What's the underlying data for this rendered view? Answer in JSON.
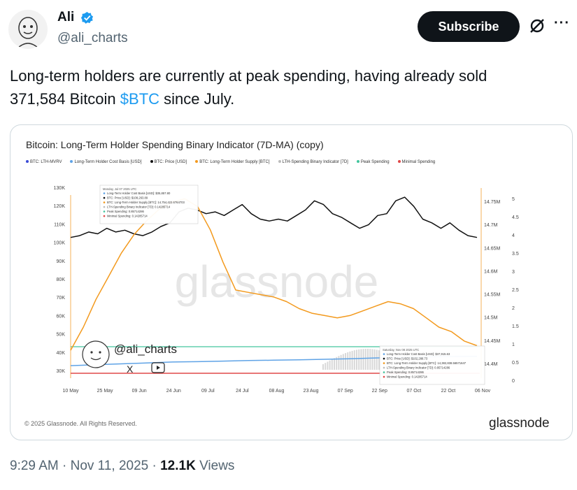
{
  "author": {
    "name": "Ali",
    "handle": "@ali_charts"
  },
  "subscribe_label": "Subscribe",
  "more_label": "···",
  "tweet": {
    "line1": "Long-term holders are currently at peak spending, having already sold",
    "line2_before": "371,584 Bitcoin ",
    "cashtag": "$BTC",
    "line2_after": " since July."
  },
  "chart_data": {
    "type": "line",
    "title": "Bitcoin: Long-Term Holder Spending Binary Indicator (7D-MA)  (copy)",
    "legend": [
      {
        "name": "BTC: LTH-MVRV",
        "color": "#3b4bd6"
      },
      {
        "name": "Long-Term Holder Cost Basis [USD]",
        "color": "#5fa3e6"
      },
      {
        "name": "BTC: Price [USD]",
        "color": "#111111"
      },
      {
        "name": "BTC: Long-Term Holder Supply [BTC]",
        "color": "#f39a1e"
      },
      {
        "name": "LTH-Spending Binary Indicator [7D]",
        "color": "#bbbbbb"
      },
      {
        "name": "Peak Spending",
        "color": "#43c59e"
      },
      {
        "name": "Minimal Spending",
        "color": "#e04848"
      }
    ],
    "x_ticks": [
      "10 May",
      "25 May",
      "09 Jun",
      "24 Jun",
      "09 Jul",
      "24 Jul",
      "08 Aug",
      "23 Aug",
      "07 Sep",
      "22 Sep",
      "07 Oct",
      "22 Oct",
      "06 Nov"
    ],
    "y_left_ticks": [
      "130K",
      "120K",
      "110K",
      "100K",
      "90K",
      "80K",
      "70K",
      "60K",
      "50K",
      "40K",
      "30K"
    ],
    "y_right1_ticks": [
      "14.75M",
      "14.7M",
      "14.65M",
      "14.6M",
      "14.55M",
      "14.5M",
      "14.45M",
      "14.4M"
    ],
    "y_right2_ticks": [
      "5",
      "4.5",
      "4",
      "3.5",
      "3",
      "2.5",
      "2",
      "1.5",
      "1",
      "0.5",
      "0"
    ],
    "series": [
      {
        "name": "BTC: Price [USD]",
        "color": "#111111",
        "values": [
          103000,
          104000,
          106000,
          105000,
          108000,
          106000,
          107000,
          105000,
          104000,
          106000,
          109000,
          111000,
          117000,
          119000,
          118000,
          116000,
          117000,
          115000,
          118000,
          121000,
          116000,
          113000,
          112000,
          113000,
          112000,
          115000,
          118000,
          123000,
          121000,
          116000,
          114000,
          111000,
          108000,
          110000,
          115000,
          116000,
          123000,
          125000,
          120000,
          113000,
          111000,
          108000,
          111000,
          107000,
          104000,
          103000
        ]
      },
      {
        "name": "BTC: Long-Term Holder Supply [BTC]",
        "color": "#f39a1e",
        "values": [
          14430000,
          14480000,
          14540000,
          14590000,
          14640000,
          14680000,
          14710000,
          14735000,
          14750000,
          14757000,
          14740000,
          14690000,
          14620000,
          14560000,
          14555000,
          14550000,
          14545000,
          14535000,
          14520000,
          14510000,
          14505000,
          14500000,
          14505000,
          14515000,
          14525000,
          14535000,
          14530000,
          14520000,
          14500000,
          14480000,
          14470000,
          14450000,
          14440000
        ]
      },
      {
        "name": "Long-Term Holder Cost Basis [USD]",
        "color": "#5fa3e6",
        "values": [
          33000,
          33500,
          34000,
          34500,
          35000,
          35200,
          35500,
          35800,
          36000,
          36200,
          36500,
          36800,
          37200,
          37500,
          37800,
          38000,
          38100
        ]
      }
    ],
    "thresholds": {
      "peak_spending": 0.85714286,
      "minimal_spending": 0.14285714
    },
    "tooltip_top": {
      "date": "Monday, Jul 07 2025 UTC",
      "lines": [
        "Long-Term Holder Cost Basis [USD]: $35,857.80",
        "BTC: Price [USD]: $108,263.89",
        "BTC: Long-Term Holder Supply [BTC]: 14,754,422.6764703",
        "LTH-Spending Binary Indicator [7D]: 0.14285714",
        "Peak Spending: 0.85714286",
        "Minimal Spending: 0.14285714"
      ]
    },
    "tooltip_bottom": {
      "date": "Saturday, Nov 08 2025 UTC",
      "lines": [
        "Long-Term Holder Cost Basis [USD]: $37,915.63",
        "BTC: Price [USD]: $102,288.73",
        "BTC: Long-Term Holder Supply [BTC]: 14,382,838.56571647",
        "LTH-Spending Binary Indicator [7D]: 0.85714286",
        "Peak Spending: 0.85714286",
        "Minimal Spending: 0.14285714"
      ]
    },
    "watermark": "glassnode",
    "overlay_handle": "@ali_charts",
    "copyright": "© 2025 Glassnode. All Rights Reserved.",
    "brand": "glassnode"
  },
  "footer": {
    "time": "9:29 AM · Nov 11, 2025 · ",
    "views_count": "12.1K",
    "views_label": " Views"
  }
}
